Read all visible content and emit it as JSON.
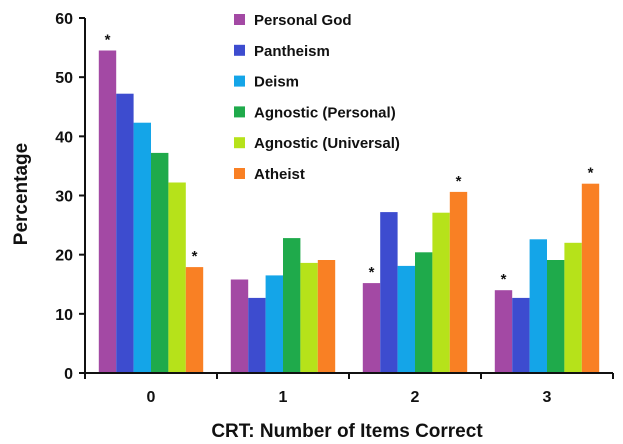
{
  "chart_data": {
    "type": "bar",
    "xlabel": "CRT: Number of Items Correct",
    "ylabel": "Percentage",
    "categories": [
      "0",
      "1",
      "2",
      "3"
    ],
    "ylim": [
      0,
      60
    ],
    "yticks": [
      0,
      10,
      20,
      30,
      40,
      50,
      60
    ],
    "legend_position": "top-center",
    "grid": false,
    "series": [
      {
        "name": "Personal God",
        "color": "#a349a4",
        "values": [
          54.5,
          15.8,
          15.2,
          14.0
        ],
        "significant": [
          true,
          false,
          true,
          true
        ]
      },
      {
        "name": "Pantheism",
        "color": "#3d4ccf",
        "values": [
          47.2,
          12.7,
          27.2,
          12.7
        ],
        "significant": [
          false,
          false,
          false,
          false
        ]
      },
      {
        "name": "Deism",
        "color": "#14a5e8",
        "values": [
          42.3,
          16.5,
          18.1,
          22.6
        ],
        "significant": [
          false,
          false,
          false,
          false
        ]
      },
      {
        "name": "Agnostic (Personal)",
        "color": "#1faa4b",
        "values": [
          37.2,
          22.8,
          20.4,
          19.1
        ],
        "significant": [
          false,
          false,
          false,
          false
        ]
      },
      {
        "name": "Agnostic (Universal)",
        "color": "#b6e21a",
        "values": [
          32.2,
          18.6,
          27.1,
          22.0
        ],
        "significant": [
          false,
          false,
          false,
          false
        ]
      },
      {
        "name": "Atheist",
        "color": "#f98024",
        "values": [
          17.9,
          19.1,
          30.6,
          32.0
        ],
        "significant": [
          true,
          false,
          true,
          true
        ]
      }
    ],
    "annotation_symbol": "*"
  }
}
